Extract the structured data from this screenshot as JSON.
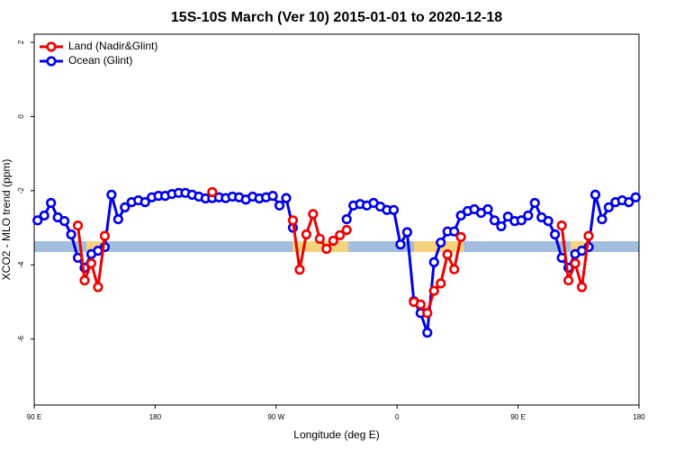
{
  "chart_data": {
    "type": "line",
    "title": "15S-10S March (Ver 10)   2015-01-01 to 2020-12-18",
    "xlabel": "Longitude (deg E)",
    "ylabel": "XCO2 - MLO trend (ppm)",
    "xlim": [
      90,
      540
    ],
    "ylim": [
      -7.78,
      2.22
    ],
    "xticks": [
      {
        "value": 90,
        "label": "90 E"
      },
      {
        "value": 180,
        "label": "180"
      },
      {
        "value": 270,
        "label": "90 W"
      },
      {
        "value": 360,
        "label": "0"
      },
      {
        "value": 450,
        "label": "90 E"
      },
      {
        "value": 540,
        "label": "180"
      }
    ],
    "yticks": [
      -6,
      -4,
      -2,
      0,
      2
    ],
    "legend": "top-left",
    "x": [
      92.5,
      97.5,
      102.5,
      107.5,
      112.5,
      117.5,
      122.5,
      127.5,
      132.5,
      137.5,
      142.5,
      147.5,
      152.5,
      157.5,
      162.5,
      167.5,
      172.5,
      177.5,
      182.5,
      187.5,
      192.5,
      197.5,
      202.5,
      207.5,
      212.5,
      217.5,
      222.5,
      227.5,
      232.5,
      237.5,
      242.5,
      247.5,
      252.5,
      257.5,
      262.5,
      267.5,
      272.5,
      277.5,
      282.5,
      287.5,
      292.5,
      297.5,
      302.5,
      307.5,
      312.5,
      317.5,
      322.5,
      327.5,
      332.5,
      337.5,
      342.5,
      347.5,
      352.5,
      357.5,
      362.5,
      367.5,
      372.5,
      377.5,
      382.5,
      387.5,
      392.5,
      397.5,
      402.5,
      407.5,
      412.5,
      417.5,
      422.5,
      427.5,
      432.5,
      437.5,
      442.5,
      447.5,
      452.5,
      457.5,
      462.5,
      467.5,
      472.5,
      477.5,
      482.5,
      487.5,
      492.5,
      497.5,
      502.5,
      507.5,
      512.5,
      517.5,
      522.5,
      527.5,
      532.5,
      537.5
    ],
    "series": [
      {
        "name": "Ocean (Glint)",
        "color": "#0000ee",
        "values": [
          -2.8,
          -2.67,
          -2.33,
          -2.72,
          -2.82,
          -3.18,
          -3.81,
          -4.08,
          -3.71,
          -3.62,
          -3.52,
          -2.11,
          -2.77,
          -2.45,
          -2.31,
          -2.26,
          -2.31,
          -2.18,
          -2.14,
          -2.14,
          -2.09,
          -2.06,
          -2.06,
          -2.11,
          -2.16,
          -2.21,
          -2.2,
          -2.18,
          -2.2,
          -2.16,
          -2.18,
          -2.24,
          -2.16,
          -2.21,
          -2.18,
          -2.14,
          -2.4,
          -2.2,
          -3.0,
          null,
          null,
          null,
          null,
          null,
          null,
          null,
          -2.77,
          -2.4,
          -2.36,
          -2.4,
          -2.33,
          -2.43,
          -2.52,
          -2.52,
          -3.45,
          -3.12,
          -4.98,
          -5.3,
          -5.83,
          -3.93,
          -3.4,
          -3.1,
          -3.1,
          -2.67,
          -2.55,
          -2.5,
          -2.6,
          -2.5,
          -2.8,
          -2.96,
          -2.7,
          -2.82,
          -2.8,
          -2.67,
          -2.33,
          -2.72,
          -2.82,
          -3.18,
          -3.81,
          -4.08,
          -3.71,
          -3.62,
          -3.52,
          -2.11,
          -2.77,
          -2.45,
          -2.31,
          -2.26,
          -2.31,
          -2.18
        ]
      },
      {
        "name": "Land (Nadir&Glint)",
        "color": "#ee0000",
        "values": [
          null,
          null,
          null,
          null,
          null,
          null,
          -2.94,
          -4.42,
          -3.96,
          -4.6,
          -3.22,
          null,
          null,
          null,
          null,
          null,
          null,
          null,
          null,
          null,
          null,
          null,
          null,
          null,
          null,
          null,
          -2.04,
          null,
          null,
          null,
          null,
          null,
          null,
          null,
          null,
          null,
          null,
          null,
          -2.8,
          -4.13,
          -3.18,
          -2.63,
          -3.3,
          -3.57,
          -3.35,
          -3.2,
          -3.06,
          null,
          null,
          null,
          null,
          null,
          null,
          null,
          null,
          null,
          -5.0,
          -5.07,
          -5.3,
          -4.7,
          -4.5,
          -3.72,
          -4.12,
          -3.25,
          null,
          null,
          null,
          null,
          null,
          null,
          null,
          null,
          null,
          null,
          null,
          null,
          null,
          null,
          -2.94,
          -4.42,
          -3.96,
          -4.6,
          -3.22,
          null,
          null,
          null,
          null,
          null,
          null,
          null
        ]
      }
    ]
  }
}
